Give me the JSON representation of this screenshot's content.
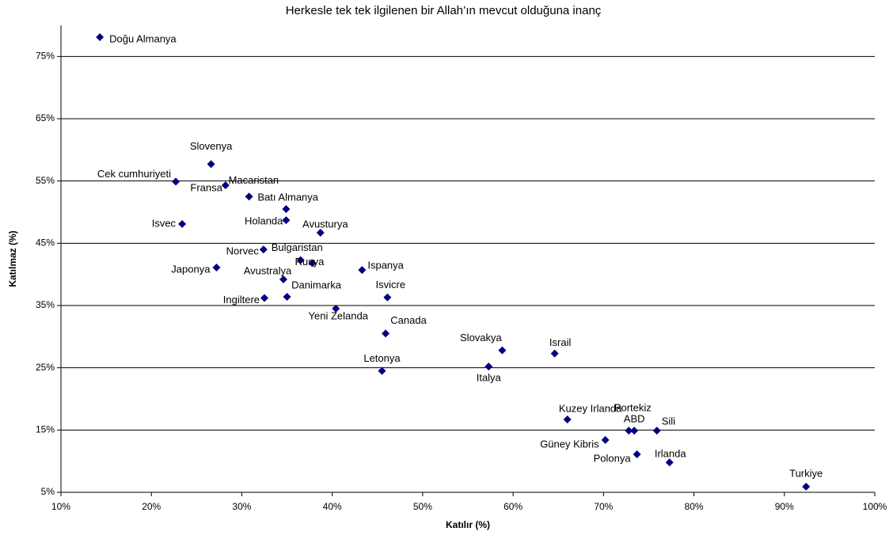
{
  "chart_data": {
    "type": "scatter",
    "title": "Herkesle tek tek ilgilenen bir Allah’ın mevcut olduğuna inanç",
    "x_label": "Katılır (%)",
    "y_label": "Katılmaz (%)",
    "color": "#000080",
    "grid": true,
    "labels": [
      "Doğu Almanya",
      "Slovenya",
      "Cek cumhuriyeti",
      "Fransa",
      "Macaristan",
      "Batı Almanya",
      "Isvec",
      "Holanda",
      "Avusturya",
      "Norvec",
      "Bulgaristan",
      "Rusya",
      "Japonya",
      "Ispanya",
      "Avustralya",
      "Danimarka",
      "Ingiltere",
      "Isvicre",
      "Yeni Zelanda",
      "Canada",
      "Letonya",
      "Slovakya",
      "Italya",
      "Israil",
      "Kuzey Irlanda",
      "Güney Kibris",
      "Portekiz",
      "ABD",
      "Sili",
      "Polonya",
      "Irlanda",
      "Turkiye"
    ],
    "x": [
      14.3,
      26.6,
      22.7,
      28.2,
      30.8,
      34.9,
      23.4,
      34.9,
      38.7,
      32.4,
      36.5,
      37.8,
      27.2,
      43.3,
      34.6,
      35.0,
      32.5,
      46.1,
      40.4,
      45.9,
      45.5,
      58.8,
      57.3,
      64.6,
      66.0,
      70.2,
      72.8,
      73.4,
      75.9,
      73.7,
      77.3,
      92.4
    ],
    "values": [
      78.1,
      57.7,
      54.9,
      54.3,
      52.5,
      50.5,
      48.1,
      48.7,
      46.7,
      44.0,
      42.3,
      41.8,
      41.1,
      40.7,
      39.2,
      36.4,
      36.2,
      36.3,
      34.5,
      30.5,
      24.5,
      27.8,
      25.2,
      27.3,
      16.7,
      13.4,
      14.9,
      14.9,
      14.9,
      11.1,
      9.8,
      5.9
    ],
    "xlim": [
      10,
      100
    ],
    "ylim": [
      5,
      80
    ],
    "xticks": [
      {
        "value": 10,
        "label": "10%"
      },
      {
        "value": 20,
        "label": "20%"
      },
      {
        "value": 30,
        "label": "30%"
      },
      {
        "value": 40,
        "label": "40%"
      },
      {
        "value": 50,
        "label": "50%"
      },
      {
        "value": 60,
        "label": "60%"
      },
      {
        "value": 70,
        "label": "70%"
      },
      {
        "value": 80,
        "label": "80%"
      },
      {
        "value": 90,
        "label": "90%"
      },
      {
        "value": 100,
        "label": "100%"
      }
    ],
    "yticks": [
      {
        "value": 5,
        "label": "5%"
      },
      {
        "value": 15,
        "label": "15%"
      },
      {
        "value": 25,
        "label": "25%"
      },
      {
        "value": 35,
        "label": "35%"
      },
      {
        "value": 45,
        "label": "45%"
      },
      {
        "value": 55,
        "label": "55%"
      },
      {
        "value": 65,
        "label": "65%"
      },
      {
        "value": 75,
        "label": "75%"
      }
    ]
  }
}
